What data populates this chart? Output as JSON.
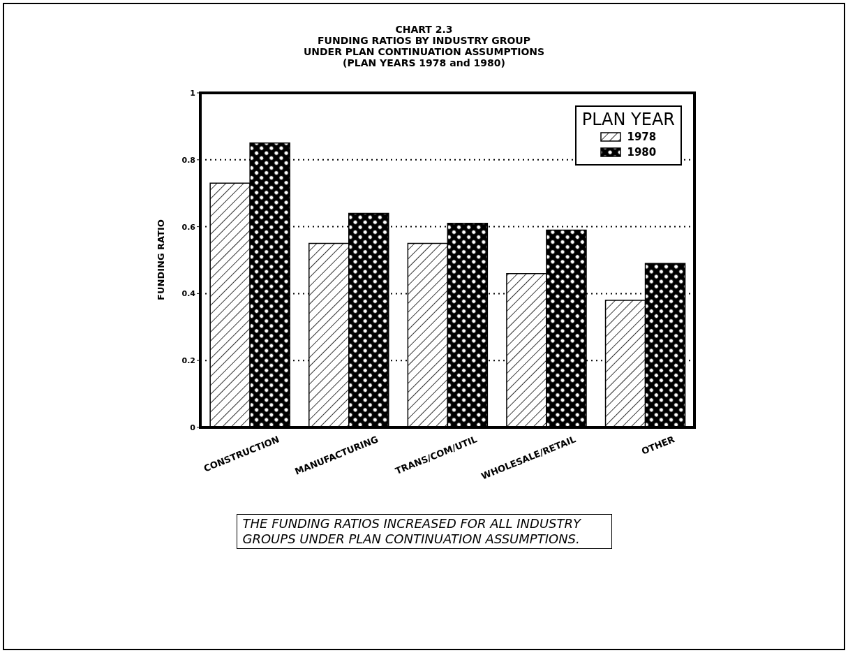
{
  "chart_data": {
    "type": "bar",
    "title": "CHART 2.3",
    "subtitle": "FUNDING RATIOS BY INDUSTRY GROUP\nUNDER PLAN CONTINUATION ASSUMPTIONS\n(PLAN YEARS 1978 and 1980)",
    "ylabel": "FUNDING RATIO",
    "legend_title": "PLAN YEAR",
    "categories": [
      "CONSTRUCTION",
      "MANUFACTURING",
      "TRANS/COM/UTIL",
      "WHOLESALE/RETAIL",
      "OTHER"
    ],
    "series": [
      {
        "name": "1978",
        "color": "#000000",
        "values": [
          0.73,
          0.55,
          0.55,
          0.46,
          0.38
        ]
      },
      {
        "name": "1980",
        "color": "#000000",
        "values": [
          0.85,
          0.64,
          0.61,
          0.59,
          0.49
        ]
      }
    ],
    "ylim": [
      0,
      1
    ],
    "yticks": [
      0,
      0.2,
      0.4,
      0.6,
      0.8,
      1
    ],
    "grid": "y",
    "legend": "top right",
    "annotations": [
      "THE FUNDING RATIOS INCREASED FOR ALL INDUSTRY GROUPS UNDER PLAN CONTINUATION ASSUMPTIONS."
    ]
  }
}
